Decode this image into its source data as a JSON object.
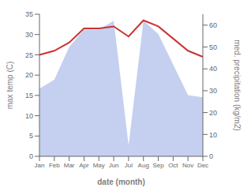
{
  "chart_data": {
    "type": "combo",
    "categories": [
      "Jan",
      "Feb",
      "Mar",
      "Apr",
      "May",
      "Jun",
      "Jul",
      "Aug",
      "Sep",
      "Oct",
      "Nov",
      "Dec"
    ],
    "series": [
      {
        "type": "area",
        "color": "#c5d0f0",
        "axis": "y2",
        "values": [
          31,
          35,
          50,
          58,
          58,
          62,
          5,
          62,
          56,
          42,
          28,
          27
        ]
      },
      {
        "type": "line",
        "color": "#cc3333",
        "values": [
          25,
          26,
          28,
          31.5,
          31.5,
          32,
          29.5,
          33.5,
          32,
          29,
          26,
          24.5
        ]
      }
    ],
    "xlabel": "date (month)",
    "ylabel": "max temp (C)",
    "y2label": "med. precipitation (kg/m2)",
    "ylim": [
      0,
      35
    ],
    "yticks": [
      0,
      5,
      10,
      15,
      20,
      25,
      30,
      35
    ],
    "y2lim": [
      0,
      65
    ],
    "y2ticks": [
      0,
      10,
      20,
      30,
      40,
      50,
      60
    ],
    "grid": false
  }
}
